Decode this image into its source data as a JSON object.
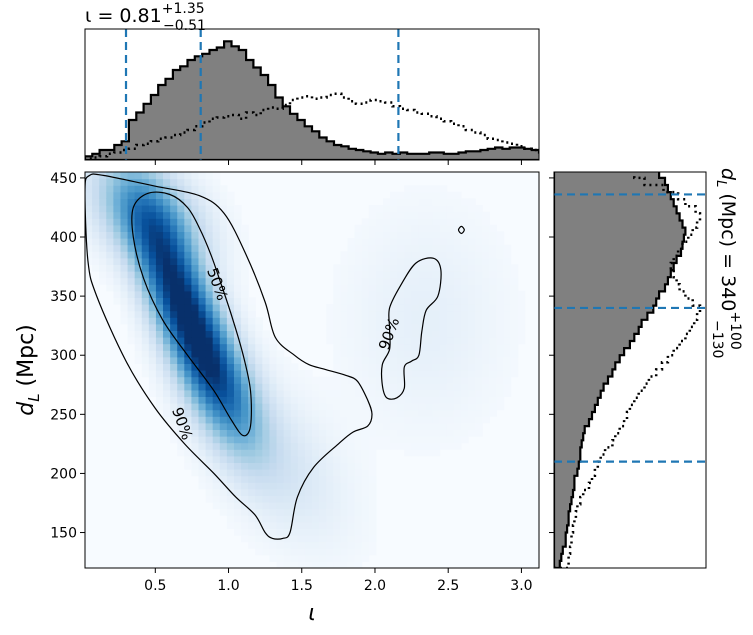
{
  "chart_data": {
    "type": "corner",
    "panels": {
      "top": {
        "type": "histogram",
        "title": {
          "base": "ι = 0.81",
          "sup": "+1.35",
          "sub": "−0.51"
        },
        "xlim": [
          0.02,
          3.12
        ],
        "bin_edges_start": 0.02,
        "bin_width": 0.05,
        "solid_hist": [
          0.03,
          0.05,
          0.08,
          0.08,
          0.12,
          0.15,
          0.32,
          0.38,
          0.45,
          0.52,
          0.6,
          0.65,
          0.72,
          0.75,
          0.8,
          0.83,
          0.85,
          0.88,
          0.9,
          0.95,
          0.91,
          0.88,
          0.8,
          0.74,
          0.68,
          0.6,
          0.5,
          0.43,
          0.37,
          0.32,
          0.27,
          0.23,
          0.18,
          0.15,
          0.12,
          0.11,
          0.09,
          0.08,
          0.07,
          0.06,
          0.05,
          0.06,
          0.05,
          0.06,
          0.05,
          0.05,
          0.05,
          0.06,
          0.06,
          0.05,
          0.05,
          0.06,
          0.07,
          0.07,
          0.08,
          0.09,
          0.1,
          0.09,
          0.1,
          0.1,
          0.09,
          0.08,
          0.06,
          0.05
        ],
        "dotted_hist": [
          0.01,
          0.02,
          0.03,
          0.05,
          0.06,
          0.08,
          0.09,
          0.12,
          0.13,
          0.15,
          0.17,
          0.18,
          0.2,
          0.22,
          0.24,
          0.27,
          0.3,
          0.33,
          0.34,
          0.35,
          0.36,
          0.33,
          0.38,
          0.36,
          0.4,
          0.42,
          0.41,
          0.44,
          0.48,
          0.5,
          0.51,
          0.49,
          0.5,
          0.52,
          0.53,
          0.5,
          0.47,
          0.45,
          0.46,
          0.48,
          0.47,
          0.46,
          0.43,
          0.41,
          0.4,
          0.38,
          0.37,
          0.35,
          0.33,
          0.31,
          0.29,
          0.27,
          0.24,
          0.22,
          0.2,
          0.17,
          0.16,
          0.14,
          0.13,
          0.11,
          0.09,
          0.08,
          0.07,
          0.05
        ],
        "quantile_lines": [
          0.3,
          0.81,
          2.16
        ]
      },
      "right": {
        "type": "histogram",
        "orientation": "horizontal",
        "label": {
          "base": "d",
          "sub_base": "L",
          "rest": " (Mpc) = 340",
          "sup": "+100",
          "sub": "−130"
        },
        "ylim": [
          120,
          455
        ],
        "bin_edges_start": 120,
        "bin_width": 6,
        "solid_hist": [
          0.04,
          0.05,
          0.06,
          0.08,
          0.08,
          0.09,
          0.1,
          0.1,
          0.11,
          0.12,
          0.13,
          0.14,
          0.14,
          0.16,
          0.17,
          0.18,
          0.18,
          0.19,
          0.2,
          0.21,
          0.24,
          0.26,
          0.28,
          0.3,
          0.32,
          0.34,
          0.37,
          0.4,
          0.42,
          0.45,
          0.48,
          0.52,
          0.55,
          0.58,
          0.6,
          0.64,
          0.68,
          0.7,
          0.72,
          0.76,
          0.78,
          0.8,
          0.82,
          0.84,
          0.87,
          0.88,
          0.89,
          0.9,
          0.88,
          0.86,
          0.84,
          0.82,
          0.8,
          0.78,
          0.76,
          0.72,
          0.66
        ],
        "dotted_hist": [
          0.1,
          0.1,
          0.11,
          0.12,
          0.12,
          0.13,
          0.14,
          0.15,
          0.16,
          0.18,
          0.2,
          0.24,
          0.26,
          0.28,
          0.3,
          0.32,
          0.35,
          0.4,
          0.42,
          0.45,
          0.48,
          0.5,
          0.52,
          0.55,
          0.58,
          0.62,
          0.65,
          0.7,
          0.74,
          0.78,
          0.82,
          0.86,
          0.9,
          0.93,
          0.96,
          0.98,
          1.0,
          0.95,
          0.9,
          0.86,
          0.84,
          0.82,
          0.8,
          0.82,
          0.85,
          0.88,
          0.92,
          0.95,
          0.98,
          1.0,
          0.97,
          0.9,
          0.85,
          0.75,
          0.62,
          0.55,
          0.9
        ],
        "quantile_lines": [
          210,
          340,
          436
        ]
      },
      "main": {
        "type": "heatmap",
        "xlabel": "ι",
        "ylabel": {
          "base": "d",
          "sub": "L",
          "rest": " (Mpc)"
        },
        "xlim": [
          0.02,
          3.12
        ],
        "ylim": [
          120,
          455
        ],
        "xticks": [
          0.5,
          1.0,
          1.5,
          2.0,
          2.5,
          3.0
        ],
        "xtick_labels": [
          "0.5",
          "1.0",
          "1.5",
          "2.0",
          "2.5",
          "3.0"
        ],
        "yticks": [
          150,
          200,
          250,
          300,
          350,
          400,
          450
        ],
        "ytick_labels": [
          "150",
          "200",
          "250",
          "300",
          "350",
          "400",
          "450"
        ],
        "colormap": "Blues",
        "density_peaks": [
          {
            "x": 0.68,
            "y": 345,
            "amp": 1.0,
            "sx": 0.22,
            "sy": 55,
            "rho": -0.75
          },
          {
            "x": 0.95,
            "y": 275,
            "amp": 0.5,
            "sx": 0.2,
            "sy": 40,
            "rho": -0.6
          },
          {
            "x": 0.45,
            "y": 420,
            "amp": 0.45,
            "sx": 0.25,
            "sy": 30,
            "rho": -0.4
          },
          {
            "x": 1.35,
            "y": 210,
            "amp": 0.12,
            "sx": 0.3,
            "sy": 45,
            "rho": -0.5
          },
          {
            "x": 2.35,
            "y": 330,
            "amp": 0.06,
            "sx": 0.35,
            "sy": 60,
            "rho": 0.0
          }
        ],
        "contours": [
          {
            "label": "50%",
            "points": [
              [
                0.35,
                425
              ],
              [
                0.45,
                437
              ],
              [
                0.6,
                436
              ],
              [
                0.72,
                425
              ],
              [
                0.8,
                408
              ],
              [
                0.88,
                385
              ],
              [
                0.95,
                360
              ],
              [
                1.03,
                330
              ],
              [
                1.1,
                300
              ],
              [
                1.15,
                270
              ],
              [
                1.15,
                240
              ],
              [
                1.1,
                232
              ],
              [
                1.02,
                245
              ],
              [
                0.9,
                270
              ],
              [
                0.72,
                300
              ],
              [
                0.55,
                330
              ],
              [
                0.42,
                365
              ],
              [
                0.35,
                400
              ]
            ]
          },
          {
            "label": "90%",
            "points": [
              [
                0.02,
                440
              ],
              [
                0.05,
                452
              ],
              [
                0.15,
                452
              ],
              [
                0.5,
                443
              ],
              [
                0.8,
                435
              ],
              [
                0.97,
                420
              ],
              [
                1.12,
                385
              ],
              [
                1.25,
                345
              ],
              [
                1.32,
                315
              ],
              [
                1.45,
                300
              ],
              [
                1.55,
                292
              ],
              [
                1.66,
                288
              ],
              [
                1.8,
                283
              ],
              [
                1.88,
                278
              ],
              [
                1.95,
                262
              ],
              [
                1.98,
                250
              ],
              [
                1.95,
                240
              ],
              [
                1.85,
                235
              ],
              [
                1.75,
                225
              ],
              [
                1.58,
                205
              ],
              [
                1.47,
                180
              ],
              [
                1.42,
                150
              ],
              [
                1.37,
                145
              ],
              [
                1.3,
                145
              ],
              [
                1.25,
                150
              ],
              [
                1.18,
                165
              ],
              [
                1.05,
                180
              ],
              [
                0.9,
                200
              ],
              [
                0.7,
                225
              ],
              [
                0.5,
                255
              ],
              [
                0.3,
                295
              ],
              [
                0.1,
                350
              ],
              [
                0.04,
                380
              ]
            ]
          },
          {
            "label": "90%",
            "points": [
              [
                2.1,
                340
              ],
              [
                2.18,
                360
              ],
              [
                2.28,
                378
              ],
              [
                2.4,
                382
              ],
              [
                2.45,
                372
              ],
              [
                2.43,
                350
              ],
              [
                2.35,
                338
              ],
              [
                2.32,
                320
              ],
              [
                2.3,
                300
              ],
              [
                2.25,
                295
              ],
              [
                2.2,
                290
              ],
              [
                2.2,
                272
              ],
              [
                2.15,
                264
              ],
              [
                2.08,
                264
              ],
              [
                2.05,
                275
              ],
              [
                2.05,
                292
              ],
              [
                2.1,
                305
              ],
              [
                2.1,
                322
              ]
            ]
          },
          {
            "label": "",
            "points": [
              [
                2.57,
                406
              ],
              [
                2.59,
                403
              ],
              [
                2.61,
                406
              ],
              [
                2.59,
                409
              ]
            ]
          }
        ],
        "contour_labels": [
          {
            "text": "50%",
            "x": 0.92,
            "y": 360,
            "rotation": 70
          },
          {
            "text": "90%",
            "x": 0.68,
            "y": 242,
            "rotation": 70
          },
          {
            "text": "90%",
            "x": 2.1,
            "y": 318,
            "rotation": -70
          }
        ]
      }
    }
  }
}
